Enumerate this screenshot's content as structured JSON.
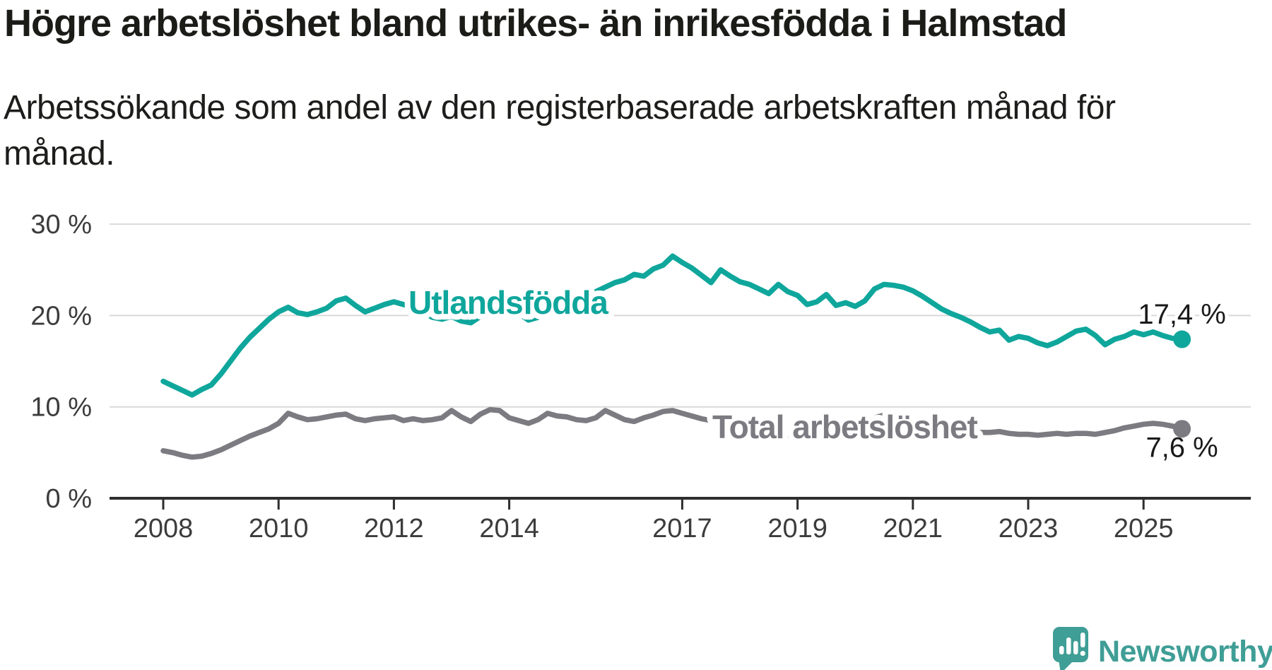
{
  "page": {
    "title": "Högre arbetslöshet bland utrikes- än inrikesfödda i Halmstad",
    "subtitle": "Arbetssökande som andel av den registerbaserade arbetskraften månad för\nmånad."
  },
  "chart_data": {
    "type": "line",
    "title": "Högre arbetslöshet bland utrikes- än inrikesfödda i Halmstad",
    "subtitle": "Arbetssökande som andel av den registerbaserade arbetskraften månad för månad.",
    "unit": "%",
    "grid": true,
    "legend_position": "inline-labels",
    "x_start_year": 2008,
    "x_step_months": 2,
    "xlim": [
      2008,
      2025.8
    ],
    "ylim": [
      0,
      30
    ],
    "yticks": [
      {
        "value": 0,
        "label": "0 %"
      },
      {
        "value": 10,
        "label": "10 %"
      },
      {
        "value": 20,
        "label": "20 %"
      },
      {
        "value": 30,
        "label": "30 %"
      }
    ],
    "xticks": [
      {
        "value": 2008,
        "label": "2008"
      },
      {
        "value": 2010,
        "label": "2010"
      },
      {
        "value": 2012,
        "label": "2012"
      },
      {
        "value": 2014,
        "label": "2014"
      },
      {
        "value": 2017,
        "label": "2017"
      },
      {
        "value": 2019,
        "label": "2019"
      },
      {
        "value": 2021,
        "label": "2021"
      },
      {
        "value": 2023,
        "label": "2023"
      },
      {
        "value": 2025,
        "label": "2025"
      }
    ],
    "series": [
      {
        "name": "Utlandsfödda",
        "color": "#0fa69c",
        "end_value": 17.4,
        "end_value_label": "17,4 %",
        "values": [
          12.8,
          12.3,
          11.8,
          11.3,
          11.9,
          12.4,
          13.6,
          15.0,
          16.4,
          17.6,
          18.6,
          19.6,
          20.4,
          20.9,
          20.3,
          20.1,
          20.4,
          20.8,
          21.6,
          21.9,
          21.1,
          20.4,
          20.8,
          21.2,
          21.5,
          21.2,
          20.9,
          20.4,
          19.8,
          19.6,
          19.9,
          19.4,
          19.2,
          19.9,
          20.4,
          20.6,
          20.9,
          20.2,
          19.5,
          19.8,
          20.6,
          21.2,
          21.6,
          22.1,
          21.9,
          22.6,
          23.1,
          23.6,
          23.9,
          24.5,
          24.3,
          25.1,
          25.5,
          26.5,
          25.8,
          25.2,
          24.4,
          23.6,
          25.0,
          24.3,
          23.7,
          23.4,
          22.9,
          22.4,
          23.4,
          22.6,
          22.2,
          21.2,
          21.5,
          22.3,
          21.1,
          21.4,
          21.0,
          21.6,
          22.9,
          23.4,
          23.3,
          23.1,
          22.7,
          22.1,
          21.4,
          20.7,
          20.2,
          19.8,
          19.3,
          18.7,
          18.2,
          18.4,
          17.3,
          17.7,
          17.5,
          17.0,
          16.7,
          17.1,
          17.7,
          18.3,
          18.5,
          17.8,
          16.8,
          17.4,
          17.7,
          18.2,
          17.9,
          18.2,
          17.8,
          17.5,
          17.4
        ]
      },
      {
        "name": "Total arbetslöshet",
        "color": "#7b7b81",
        "end_value": 7.6,
        "end_value_label": "7,6 %",
        "values": [
          5.2,
          5.0,
          4.7,
          4.5,
          4.6,
          4.9,
          5.3,
          5.8,
          6.3,
          6.8,
          7.2,
          7.6,
          8.2,
          9.3,
          8.9,
          8.6,
          8.7,
          8.9,
          9.1,
          9.2,
          8.7,
          8.5,
          8.7,
          8.8,
          8.9,
          8.5,
          8.7,
          8.5,
          8.6,
          8.8,
          9.6,
          8.9,
          8.4,
          9.2,
          9.7,
          9.6,
          8.8,
          8.5,
          8.2,
          8.6,
          9.3,
          9.0,
          8.9,
          8.6,
          8.5,
          8.8,
          9.6,
          9.1,
          8.6,
          8.4,
          8.8,
          9.1,
          9.5,
          9.6,
          9.3,
          9.0,
          8.7,
          8.5,
          8.7,
          8.4,
          8.2,
          7.8,
          7.4,
          7.1,
          7.0,
          6.9,
          6.8,
          6.6,
          6.7,
          6.9,
          6.8,
          7.0,
          7.2,
          8.0,
          8.8,
          9.1,
          9.0,
          8.8,
          8.6,
          8.3,
          8.0,
          7.7,
          7.5,
          7.4,
          7.3,
          7.2,
          7.2,
          7.3,
          7.1,
          7.0,
          7.0,
          6.9,
          7.0,
          7.1,
          7.0,
          7.1,
          7.1,
          7.0,
          7.2,
          7.4,
          7.7,
          7.9,
          8.1,
          8.2,
          8.1,
          7.9,
          7.6
        ]
      }
    ]
  },
  "branding": {
    "logo_text": "Newsworthy",
    "logo_color": "#3f9e96",
    "logo_icon": "speech-bubble-bar-chart-icon"
  }
}
